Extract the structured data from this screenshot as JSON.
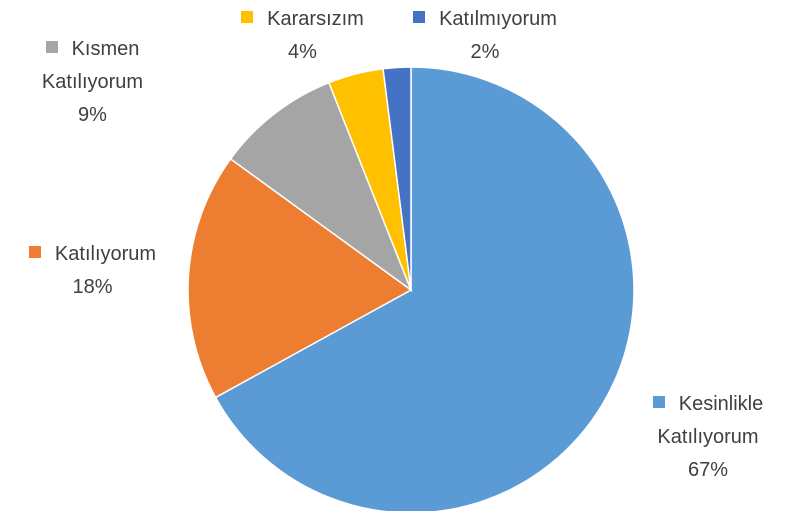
{
  "chart_data": {
    "type": "pie",
    "categories": [
      "Kesinlikle Katılıyorum",
      "Katılıyorum",
      "Kısmen Katılıyorum",
      "Kararsızım",
      "Katılmıyorum"
    ],
    "values": [
      67,
      18,
      9,
      4,
      2
    ],
    "value_labels": [
      "67%",
      "18%",
      "9%",
      "4%",
      "2%"
    ],
    "colors": [
      "#5b9bd5",
      "#ed7d31",
      "#a5a5a5",
      "#ffc000",
      "#4472c4"
    ]
  }
}
